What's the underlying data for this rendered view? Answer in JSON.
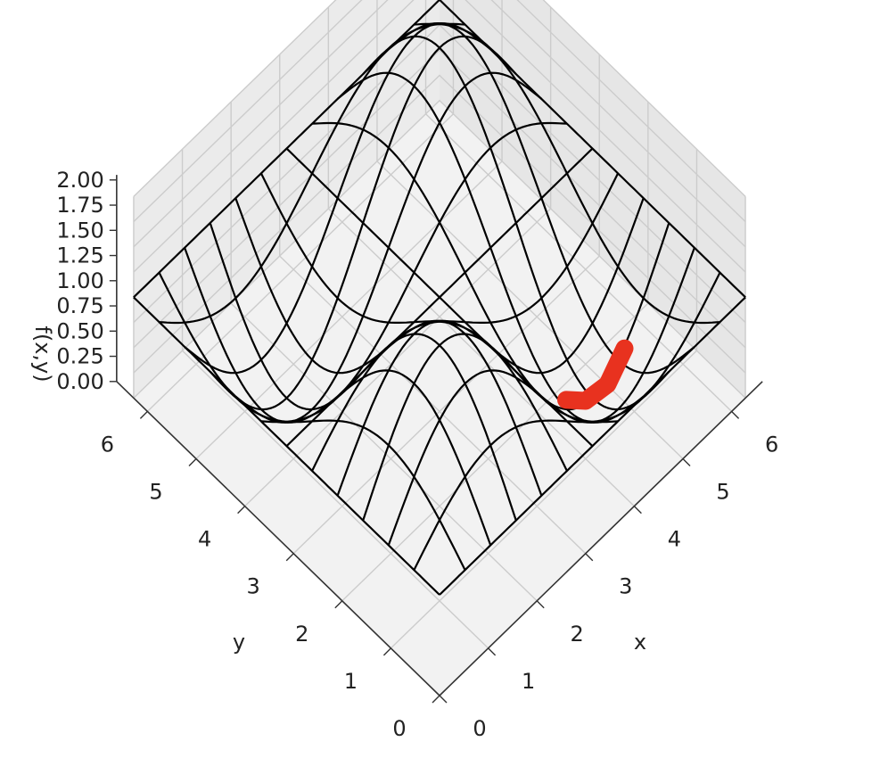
{
  "chart_data": {
    "type": "surface-wireframe-3d",
    "title": "",
    "function": "f(x,y) = 1 + sin(x)·sin(y)",
    "x": {
      "label": "x",
      "range": [
        0,
        6.283
      ],
      "ticks": [
        "0",
        "1",
        "2",
        "3",
        "4",
        "5",
        "6"
      ]
    },
    "y": {
      "label": "y",
      "range": [
        0,
        6.283
      ],
      "ticks": [
        "0",
        "1",
        "2",
        "3",
        "4",
        "5",
        "6"
      ]
    },
    "z": {
      "label": "f(x,y)",
      "range": [
        0,
        2
      ],
      "ticks": [
        "0.00",
        "0.25",
        "0.50",
        "0.75",
        "1.00",
        "1.25",
        "1.50",
        "1.75",
        "2.00"
      ]
    },
    "wireframe": {
      "rows": 13,
      "cols": 13,
      "color": "#000000"
    },
    "path": {
      "color": "#e8321f",
      "points": [
        [
          4.2,
          1.6
        ],
        [
          4.5,
          1.5
        ],
        [
          4.9,
          1.45
        ],
        [
          5.3,
          1.5
        ]
      ]
    },
    "view": {
      "elevation": 45,
      "azimuth": 45
    },
    "grid": true,
    "pane_color": "#f2f2f2",
    "grid_color": "#cccccc"
  }
}
